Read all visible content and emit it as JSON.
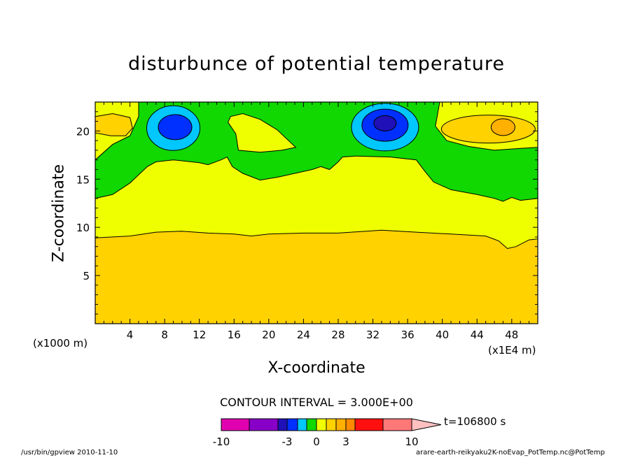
{
  "chart_data": {
    "type": "contour",
    "title": "disturbunce of potential temperature",
    "xlabel": "X-coordinate",
    "ylabel": "Z-coordinate",
    "x_unit_label": "(x1000 m)",
    "x2_unit_label": "(x1E4 m)",
    "xlim": [
      0,
      51
    ],
    "ylim": [
      0,
      23
    ],
    "xticks": [
      4,
      8,
      12,
      16,
      20,
      24,
      28,
      32,
      36,
      40,
      44,
      48
    ],
    "yticks": [
      5,
      10,
      15,
      20
    ],
    "contour_interval_text": "CONTOUR INTERVAL = 3.000E+00",
    "time_label": "t=106800 s",
    "colorbar": {
      "bounds": [
        -10,
        -3,
        0,
        3,
        10
      ],
      "tick_labels": [
        "-10",
        "-3",
        "0",
        "3",
        "10"
      ],
      "colors": [
        "#e000b0",
        "#8800c8",
        "#2010b8",
        "#0030ff",
        "#00c8ff",
        "#10d800",
        "#f0ff00",
        "#ffd200",
        "#ffb000",
        "#ff8a00",
        "#ff1010",
        "#ff7878",
        "#ffc0c0"
      ]
    },
    "regions": [
      {
        "color": "#ffd200",
        "label": "lower layer, 0 to 3"
      },
      {
        "color": "#f0ff00",
        "label": "middle layer, 0 to 3"
      },
      {
        "color": "#10d800",
        "label": "upper layer, -3 to 0"
      },
      {
        "color": "#00c8ff",
        "label": "negative cells near x=9 and x=33, z=20"
      },
      {
        "color": "#ffb000",
        "label": "positive cell near x=47, z=20"
      }
    ]
  },
  "colors": {
    "orange": "#ffd200",
    "yellow": "#f0ff00",
    "green": "#10d800",
    "cyan": "#00c8ff",
    "blue": "#0030ff",
    "darkblue": "#2010b8",
    "peak_orange": "#ffb000"
  },
  "footer": {
    "left": "/usr/bin/gpview  2010-11-10",
    "right": "arare-earth-reikyaku2K-noEvap_PotTemp.nc@PotTemp"
  }
}
